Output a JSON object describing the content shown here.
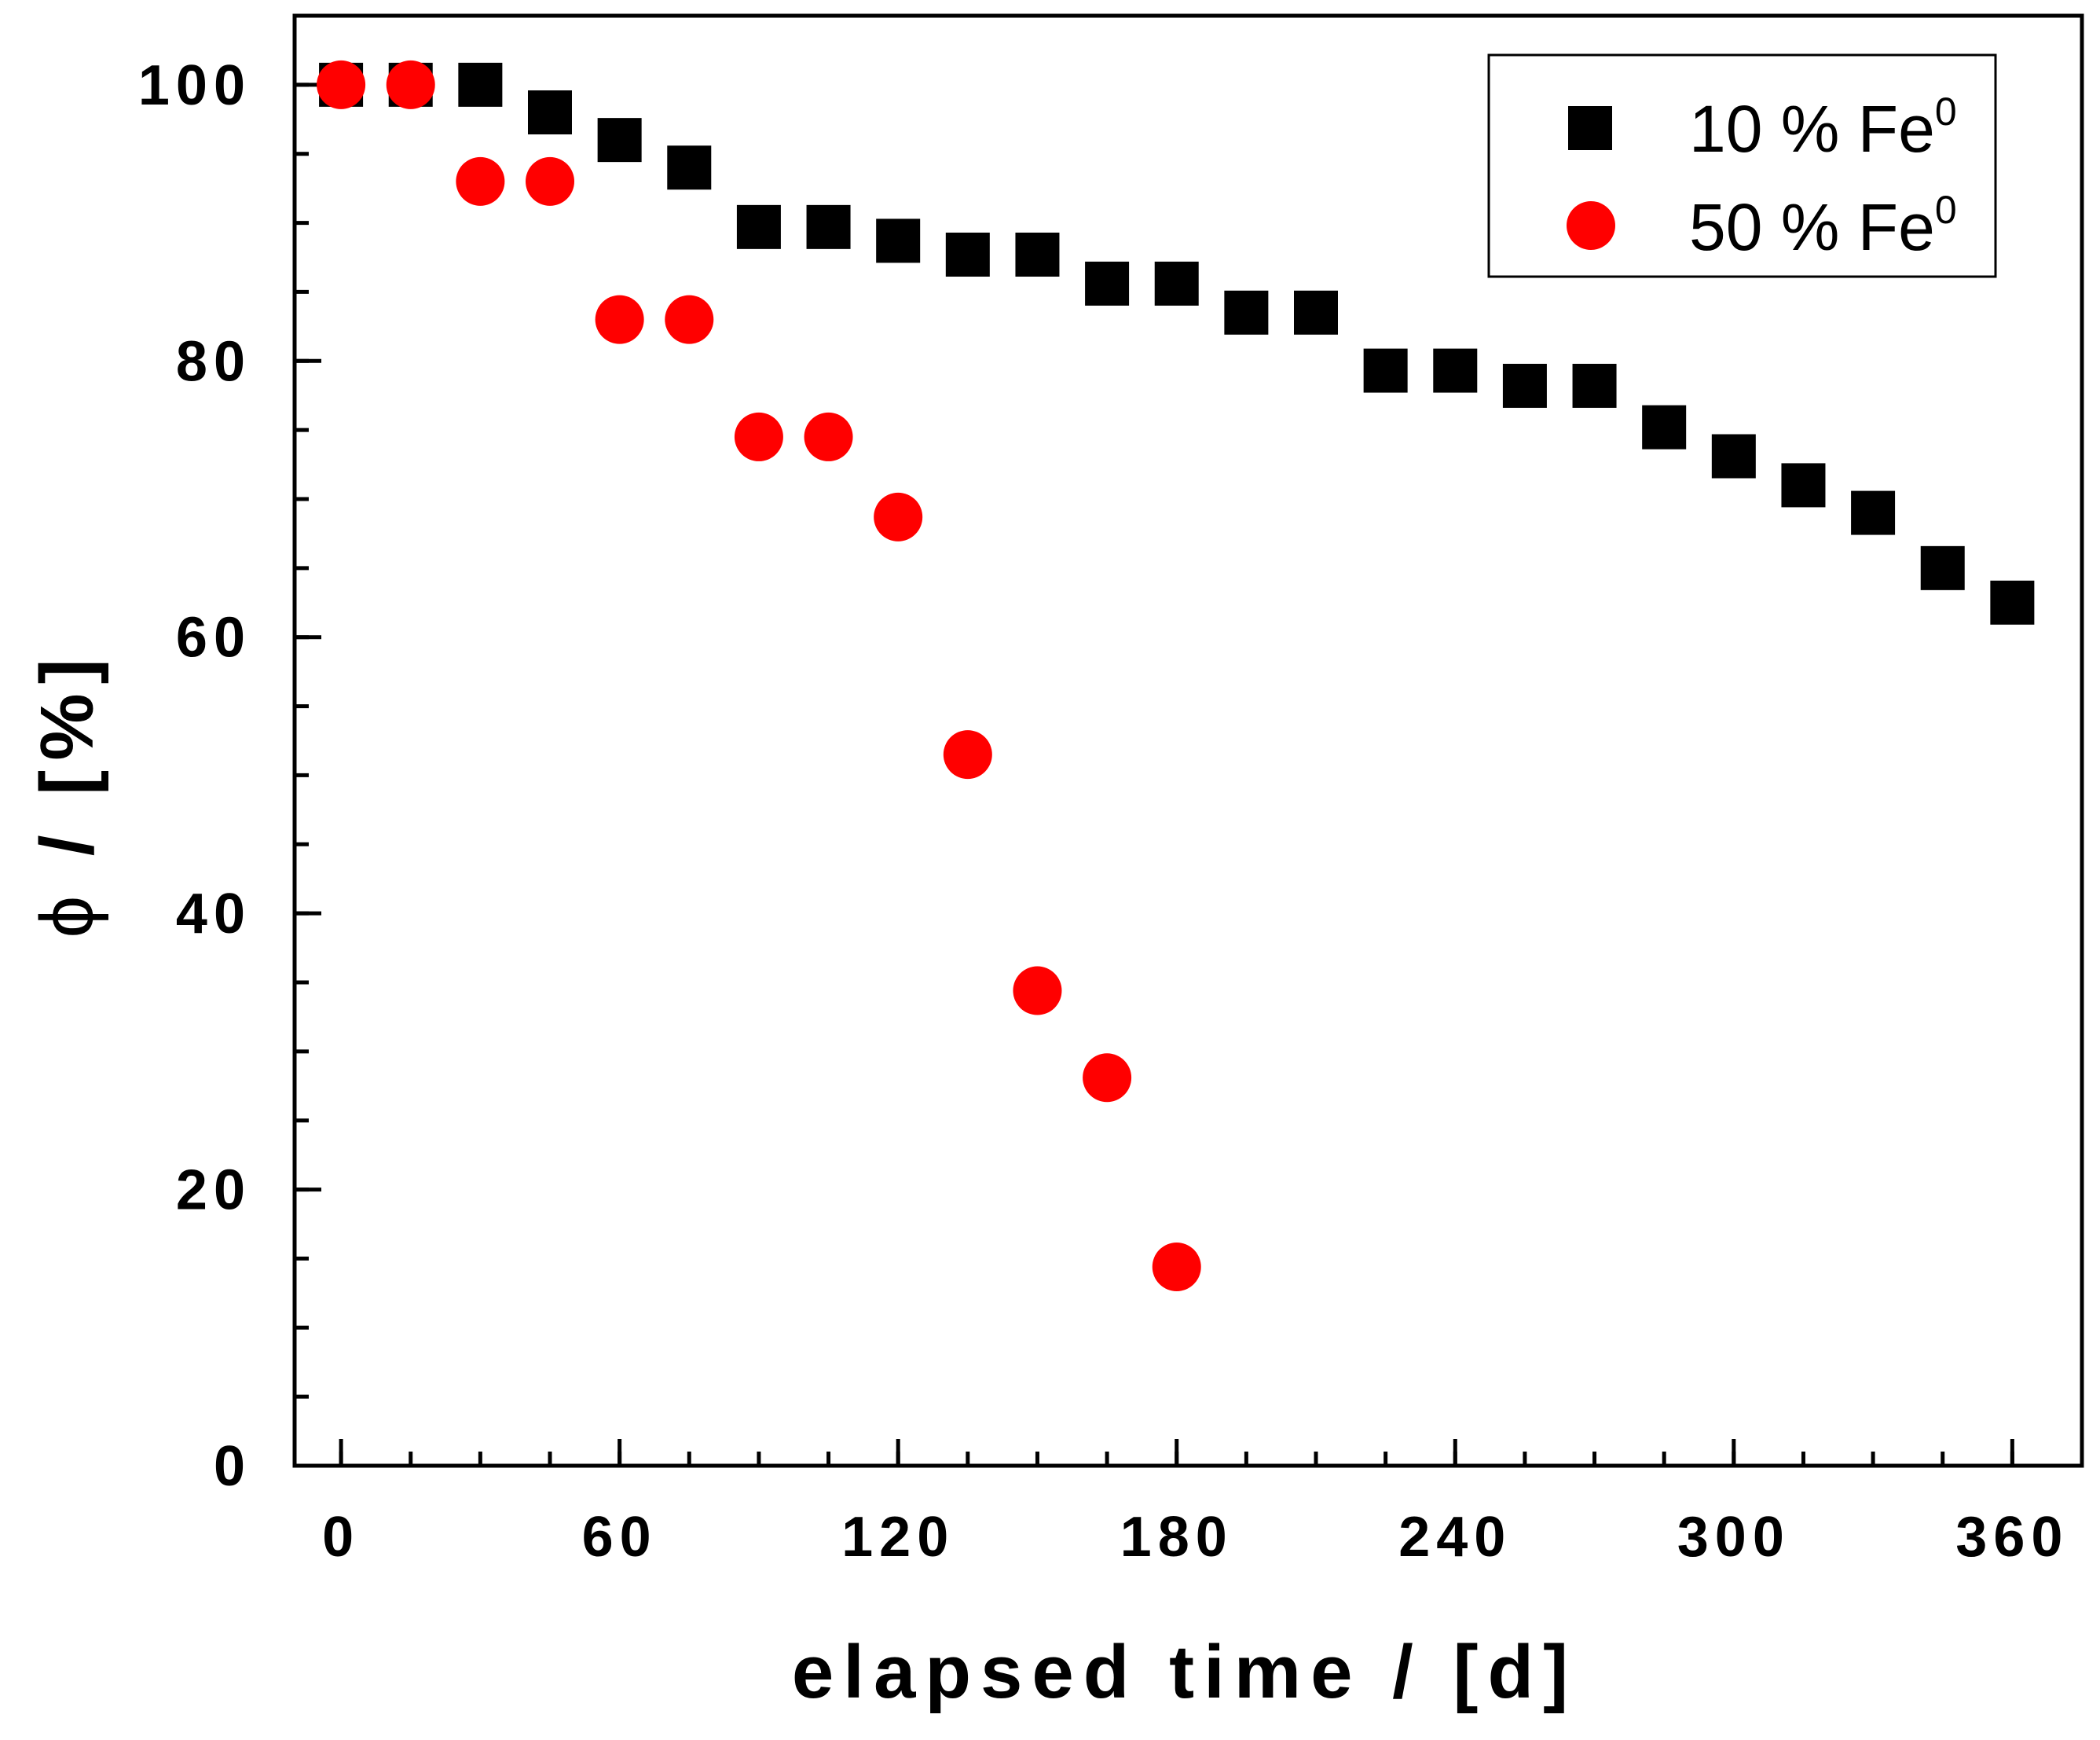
{
  "chart_data": {
    "type": "scatter",
    "xlabel": "elapsed time / [d]",
    "ylabel_symbol": "ϕ",
    "ylabel_rest": " / [%]",
    "xlim": [
      -10,
      375
    ],
    "ylim": [
      0,
      105
    ],
    "xticks": [
      0,
      60,
      120,
      180,
      240,
      300,
      360
    ],
    "yticks": [
      0,
      20,
      40,
      60,
      80,
      100
    ],
    "xticks_minor": [
      0,
      15,
      30,
      45,
      60,
      75,
      90,
      105,
      120,
      135,
      150,
      165,
      180,
      195,
      210,
      225,
      240,
      255,
      270,
      285,
      300,
      315,
      330,
      345,
      360
    ],
    "yticks_minor": [
      0,
      5,
      10,
      15,
      20,
      25,
      30,
      35,
      40,
      45,
      50,
      55,
      60,
      65,
      70,
      75,
      80,
      85,
      90,
      95,
      100
    ],
    "legend_position": "top-right",
    "series": [
      {
        "name": "10 % Fe",
        "name_sup": "0",
        "marker": "square",
        "color": "#000000",
        "x": [
          0,
          15,
          30,
          45,
          60,
          75,
          90,
          105,
          120,
          135,
          150,
          165,
          180,
          195,
          210,
          225,
          240,
          255,
          270,
          285,
          300,
          315,
          330,
          345,
          360
        ],
        "y": [
          100,
          100,
          100,
          98,
          96,
          94,
          89.7,
          89.7,
          88.7,
          87.7,
          87.7,
          85.6,
          85.6,
          83.5,
          83.5,
          79.3,
          79.3,
          78.2,
          78.2,
          75.2,
          73.1,
          71,
          69,
          65,
          62.5
        ]
      },
      {
        "name": "50 % Fe",
        "name_sup": "0",
        "marker": "circle",
        "color": "#ff0000",
        "x": [
          0,
          15,
          30,
          45,
          60,
          75,
          90,
          105,
          120,
          135,
          150,
          165,
          180
        ],
        "y": [
          100,
          100,
          93,
          93,
          83,
          83,
          74.5,
          74.5,
          68.7,
          51.5,
          34.4,
          28.1,
          14.4
        ]
      }
    ]
  }
}
